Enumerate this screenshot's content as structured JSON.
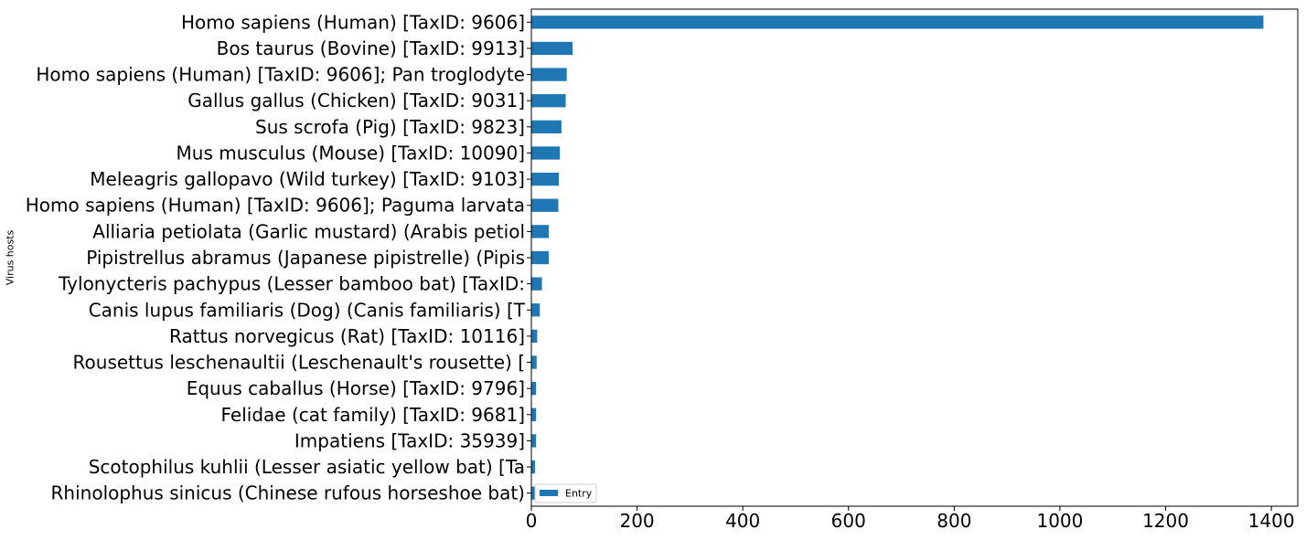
{
  "chart_data": {
    "type": "bar",
    "orientation": "horizontal",
    "title": "",
    "xlabel": "",
    "ylabel": "Virus hosts",
    "xlim": [
      0,
      1450
    ],
    "xticks": [
      0,
      200,
      400,
      600,
      800,
      1000,
      1200,
      1400
    ],
    "grid": false,
    "legend_position": "lower-left",
    "bar_color": "#1f77b4",
    "categories": [
      "Homo sapiens (Human) [TaxID: 9606]",
      "Bos taurus (Bovine) [TaxID: 9913]",
      "Homo sapiens (Human) [TaxID: 9606]; Pan troglodyte",
      "Gallus gallus (Chicken) [TaxID: 9031]",
      "Sus scrofa (Pig) [TaxID: 9823]",
      "Mus musculus (Mouse) [TaxID: 10090]",
      "Meleagris gallopavo (Wild turkey) [TaxID: 9103]",
      "Homo sapiens (Human) [TaxID: 9606]; Paguma larvata",
      "Alliaria petiolata (Garlic mustard) (Arabis petiol",
      "Pipistrellus abramus (Japanese pipistrelle) (Pipis",
      "Tylonycteris pachypus (Lesser bamboo bat) [TaxID: ",
      "Canis lupus familiaris (Dog) (Canis familiaris) [T",
      "Rattus norvegicus (Rat) [TaxID: 10116]",
      "Rousettus leschenaultii (Leschenault's rousette) [",
      "Equus caballus (Horse) [TaxID: 9796]",
      "Felidae (cat family) [TaxID: 9681]",
      "Impatiens [TaxID: 35939]",
      "Scotophilus kuhlii (Lesser asiatic yellow bat) [Ta",
      "Rhinolophus sinicus (Chinese rufous horseshoe bat)"
    ],
    "series": [
      {
        "name": "Entry",
        "values": [
          1385,
          78,
          67,
          65,
          57,
          54,
          52,
          51,
          33,
          33,
          20,
          16,
          11,
          10,
          9,
          9,
          9,
          7,
          7
        ]
      }
    ]
  }
}
